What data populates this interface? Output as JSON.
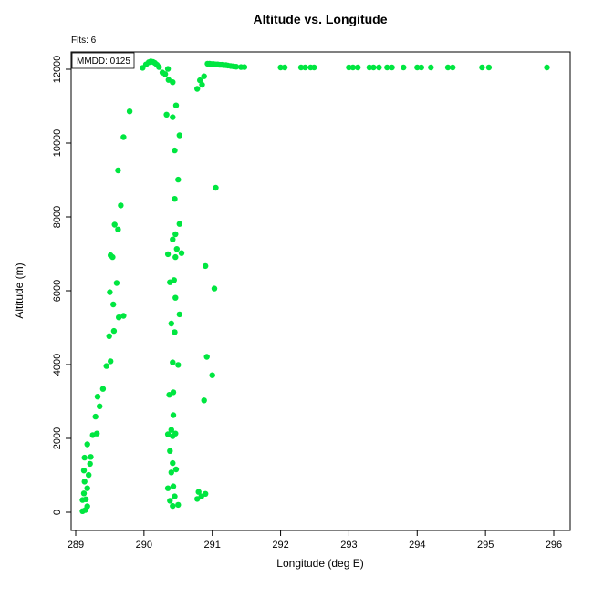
{
  "chart_data": {
    "type": "scatter",
    "title": "Altitude vs. Longitude",
    "xlabel": "Longitude (deg E)",
    "ylabel": "Altitude (m)",
    "annotations": {
      "flights": "Flts: 6",
      "mmdd": "MMDD: 0125"
    },
    "x_ticks": [
      289,
      290,
      291,
      292,
      293,
      294,
      295,
      296
    ],
    "y_ticks": [
      0,
      2000,
      4000,
      6000,
      8000,
      10000,
      12000
    ],
    "xlim": [
      288.93,
      296.21
    ],
    "ylim": [
      -490,
      12480
    ],
    "grid": false,
    "legend_position": "topleft",
    "point_color": "#00E640",
    "points": [
      [
        289.1,
        30
      ],
      [
        289.14,
        60
      ],
      [
        289.17,
        160
      ],
      [
        289.1,
        330
      ],
      [
        289.15,
        350
      ],
      [
        289.12,
        510
      ],
      [
        289.17,
        650
      ],
      [
        289.13,
        830
      ],
      [
        289.19,
        1010
      ],
      [
        289.12,
        1130
      ],
      [
        289.21,
        1310
      ],
      [
        289.13,
        1480
      ],
      [
        289.22,
        1500
      ],
      [
        289.17,
        1840
      ],
      [
        289.25,
        2090
      ],
      [
        289.31,
        2130
      ],
      [
        289.29,
        2590
      ],
      [
        289.35,
        2870
      ],
      [
        289.32,
        3130
      ],
      [
        289.4,
        3340
      ],
      [
        289.45,
        3960
      ],
      [
        289.51,
        4090
      ],
      [
        289.49,
        4770
      ],
      [
        289.56,
        4910
      ],
      [
        289.63,
        5280
      ],
      [
        289.7,
        5320
      ],
      [
        289.55,
        5630
      ],
      [
        289.5,
        5960
      ],
      [
        289.6,
        6210
      ],
      [
        289.54,
        6910
      ],
      [
        289.51,
        6960
      ],
      [
        289.62,
        7660
      ],
      [
        289.57,
        7790
      ],
      [
        289.66,
        8310
      ],
      [
        289.62,
        9260
      ],
      [
        289.7,
        10160
      ],
      [
        289.79,
        10860
      ],
      [
        290.42,
        170
      ],
      [
        290.5,
        200
      ],
      [
        290.38,
        310
      ],
      [
        290.45,
        430
      ],
      [
        290.35,
        650
      ],
      [
        290.43,
        700
      ],
      [
        290.4,
        1080
      ],
      [
        290.47,
        1160
      ],
      [
        290.42,
        1330
      ],
      [
        290.38,
        1660
      ],
      [
        290.42,
        2060
      ],
      [
        290.35,
        2110
      ],
      [
        290.46,
        2130
      ],
      [
        290.4,
        2230
      ],
      [
        290.43,
        2630
      ],
      [
        290.37,
        3180
      ],
      [
        290.43,
        3250
      ],
      [
        290.5,
        3990
      ],
      [
        290.42,
        4060
      ],
      [
        290.45,
        4880
      ],
      [
        290.4,
        5110
      ],
      [
        290.52,
        5360
      ],
      [
        290.46,
        5810
      ],
      [
        290.38,
        6230
      ],
      [
        290.44,
        6290
      ],
      [
        290.46,
        6910
      ],
      [
        290.35,
        6990
      ],
      [
        290.55,
        7020
      ],
      [
        290.48,
        7130
      ],
      [
        290.42,
        7390
      ],
      [
        290.46,
        7530
      ],
      [
        290.52,
        7810
      ],
      [
        290.45,
        8490
      ],
      [
        290.5,
        9010
      ],
      [
        290.45,
        9800
      ],
      [
        290.52,
        10210
      ],
      [
        290.42,
        10700
      ],
      [
        290.33,
        10770
      ],
      [
        290.47,
        11020
      ],
      [
        290.42,
        11650
      ],
      [
        290.36,
        11710
      ],
      [
        290.78,
        360
      ],
      [
        290.84,
        430
      ],
      [
        290.9,
        500
      ],
      [
        290.8,
        550
      ],
      [
        290.88,
        3030
      ],
      [
        291.0,
        3710
      ],
      [
        290.92,
        4210
      ],
      [
        291.03,
        6060
      ],
      [
        290.9,
        6670
      ],
      [
        291.05,
        8790
      ],
      [
        290.78,
        11470
      ],
      [
        290.85,
        11580
      ],
      [
        290.82,
        11700
      ],
      [
        290.88,
        11810
      ],
      [
        289.98,
        12040
      ],
      [
        290.03,
        12130
      ],
      [
        290.07,
        12190
      ],
      [
        290.1,
        12210
      ],
      [
        290.13,
        12200
      ],
      [
        290.16,
        12170
      ],
      [
        290.19,
        12120
      ],
      [
        290.22,
        12060
      ],
      [
        290.27,
        11910
      ],
      [
        290.31,
        11870
      ],
      [
        290.35,
        12010
      ],
      [
        290.93,
        12150
      ],
      [
        290.96,
        12150
      ],
      [
        290.99,
        12140
      ],
      [
        291.02,
        12140
      ],
      [
        291.05,
        12130
      ],
      [
        291.08,
        12130
      ],
      [
        291.11,
        12120
      ],
      [
        291.14,
        12120
      ],
      [
        291.17,
        12110
      ],
      [
        291.2,
        12110
      ],
      [
        291.23,
        12100
      ],
      [
        291.27,
        12090
      ],
      [
        291.31,
        12080
      ],
      [
        291.35,
        12070
      ],
      [
        291.42,
        12060
      ],
      [
        291.47,
        12060
      ],
      [
        292.0,
        12050
      ],
      [
        292.06,
        12050
      ],
      [
        292.3,
        12050
      ],
      [
        292.36,
        12050
      ],
      [
        292.44,
        12050
      ],
      [
        292.49,
        12050
      ],
      [
        293.0,
        12050
      ],
      [
        293.06,
        12050
      ],
      [
        293.13,
        12050
      ],
      [
        293.3,
        12050
      ],
      [
        293.36,
        12050
      ],
      [
        293.44,
        12050
      ],
      [
        293.56,
        12050
      ],
      [
        293.63,
        12050
      ],
      [
        293.8,
        12050
      ],
      [
        294.0,
        12050
      ],
      [
        294.06,
        12050
      ],
      [
        294.2,
        12050
      ],
      [
        294.45,
        12050
      ],
      [
        294.52,
        12050
      ],
      [
        294.95,
        12050
      ],
      [
        295.05,
        12050
      ],
      [
        295.9,
        12050
      ]
    ]
  }
}
